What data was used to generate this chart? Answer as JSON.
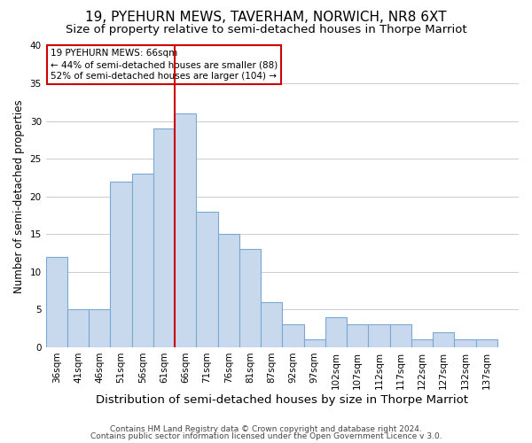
{
  "title": "19, PYEHURN MEWS, TAVERHAM, NORWICH, NR8 6XT",
  "subtitle": "Size of property relative to semi-detached houses in Thorpe Marriot",
  "xlabel": "Distribution of semi-detached houses by size in Thorpe Marriot",
  "ylabel": "Number of semi-detached properties",
  "bin_labels": [
    "36sqm",
    "41sqm",
    "46sqm",
    "51sqm",
    "56sqm",
    "61sqm",
    "66sqm",
    "71sqm",
    "76sqm",
    "81sqm",
    "87sqm",
    "92sqm",
    "97sqm",
    "102sqm",
    "107sqm",
    "112sqm",
    "117sqm",
    "122sqm",
    "127sqm",
    "132sqm",
    "137sqm"
  ],
  "bin_edges": [
    36,
    41,
    46,
    51,
    56,
    61,
    66,
    71,
    76,
    81,
    86,
    91,
    96,
    101,
    106,
    111,
    116,
    121,
    126,
    131,
    136,
    141
  ],
  "bar_heights": [
    12,
    5,
    5,
    22,
    23,
    29,
    31,
    18,
    15,
    13,
    6,
    3,
    1,
    4,
    3,
    3,
    3,
    1,
    2,
    1,
    1
  ],
  "bar_color": "#c9d9ed",
  "bar_edge_color": "#7aa8d2",
  "property_line_x": 66,
  "property_line_color": "#cc0000",
  "ylim": [
    0,
    40
  ],
  "yticks": [
    0,
    5,
    10,
    15,
    20,
    25,
    30,
    35,
    40
  ],
  "annotation_text": "19 PYEHURN MEWS: 66sqm\n← 44% of semi-detached houses are smaller (88)\n52% of semi-detached houses are larger (104) →",
  "annotation_box_color": "#ffffff",
  "annotation_box_edge_color": "#cc0000",
  "footer_line1": "Contains HM Land Registry data © Crown copyright and database right 2024.",
  "footer_line2": "Contains public sector information licensed under the Open Government Licence v 3.0.",
  "background_color": "#ffffff",
  "grid_color": "#cccccc",
  "title_fontsize": 11,
  "subtitle_fontsize": 9.5,
  "xlabel_fontsize": 9.5,
  "ylabel_fontsize": 8.5,
  "tick_label_fontsize": 7.5,
  "annotation_fontsize": 7.5,
  "footer_fontsize": 6.5
}
